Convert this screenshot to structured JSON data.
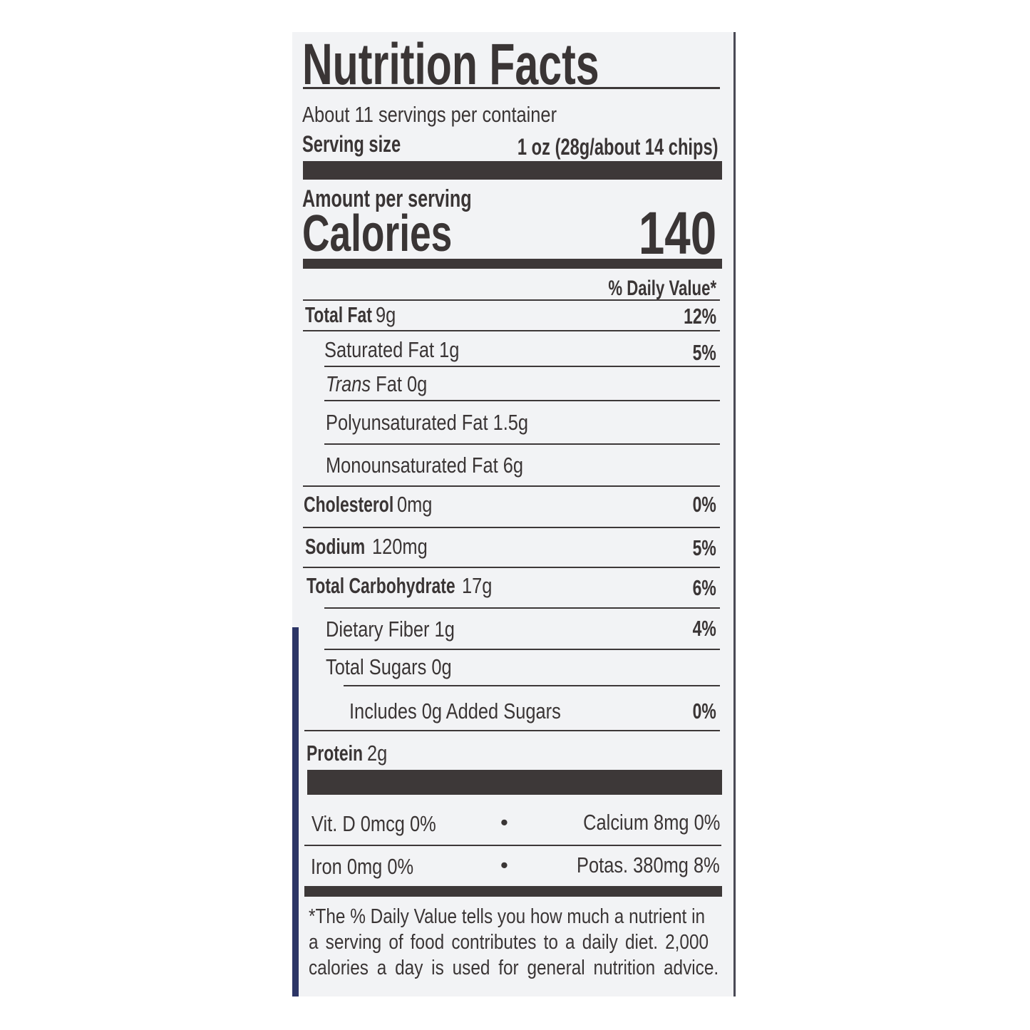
{
  "label": {
    "title": "Nutrition Facts",
    "servings_per_container": "About 11 servings per container",
    "serving_size_label": "Serving size",
    "serving_size_value": "1 oz (28g/about 14 chips)",
    "amount_per_serving": "Amount per serving",
    "calories_label": "Calories",
    "calories_value": "140",
    "daily_value_header": "% Daily Value*",
    "nutrients": [
      {
        "label": "Total Fat",
        "amount": "9g",
        "dv": "12%"
      },
      {
        "label": "Saturated Fat 1g",
        "dv": "5%"
      },
      {
        "label_italic": "Trans",
        "label": "Fat 0g"
      },
      {
        "label": "Polyunsaturated Fat 1.5g"
      },
      {
        "label": "Monounsaturated Fat 6g"
      },
      {
        "label": "Cholesterol",
        "amount": "0mg",
        "dv": "0%"
      },
      {
        "label": "Sodium",
        "amount": "120mg",
        "dv": "5%"
      },
      {
        "label": "Total Carbohydrate",
        "amount": "17g",
        "dv": "6%"
      },
      {
        "label": "Dietary Fiber 1g",
        "dv": "4%"
      },
      {
        "label": "Total Sugars 0g"
      },
      {
        "label": "Includes 0g Added Sugars",
        "dv": "0%"
      },
      {
        "label": "Protein",
        "amount": "2g"
      }
    ],
    "vitamins": [
      {
        "left": "Vit. D 0mcg 0%",
        "right": "Calcium 8mg 0%"
      },
      {
        "left": "Iron 0mg 0%",
        "right": "Potas. 380mg 8%"
      }
    ],
    "bullet": "•",
    "footnote": [
      "*The % Daily Value tells you how much a nutrient in",
      "a serving of food contributes to a daily diet. 2,000",
      "calories a day is used for general nutrition advice."
    ]
  }
}
